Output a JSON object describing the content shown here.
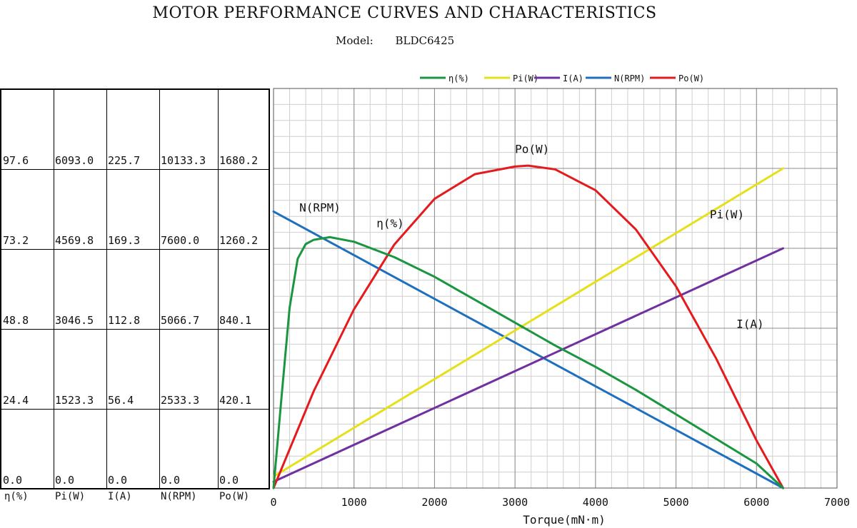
{
  "title": "MOTOR PERFORMANCE CURVES AND CHARACTERISTICS",
  "model_label": "Model:",
  "model_value": "BLDC6425",
  "legend": [
    {
      "name": "η(%)",
      "color": "#1a9641"
    },
    {
      "name": "Pi(W)",
      "color": "#e5e01a"
    },
    {
      "name": "I(A)",
      "color": "#7030a0"
    },
    {
      "name": "N(RPM)",
      "color": "#1f6fbf"
    },
    {
      "name": "Po(W)",
      "color": "#e41a1c"
    }
  ],
  "scale_table": {
    "columns": [
      "η(%)",
      "Pi(W)",
      "I(A)",
      "N(RPM)",
      "Po(W)"
    ],
    "rows": [
      [
        "97.6",
        "6093.0",
        "225.7",
        "10133.3",
        "1680.2"
      ],
      [
        "73.2",
        "4569.8",
        "169.3",
        "7600.0",
        "1260.2"
      ],
      [
        "48.8",
        "3046.5",
        "112.8",
        "5066.7",
        "840.1"
      ],
      [
        "24.4",
        "1523.3",
        "56.4",
        "2533.3",
        "420.1"
      ],
      [
        "0.0",
        "0.0",
        "0.0",
        "0.0",
        "0.0"
      ]
    ]
  },
  "chart_data": {
    "type": "line",
    "xlabel": "Torque(mN·m)",
    "xlim": [
      0,
      7000
    ],
    "x_ticks": [
      "0",
      "1000",
      "2000",
      "3000",
      "4000",
      "5000",
      "6000",
      "7000"
    ],
    "grid": true,
    "series": [
      {
        "name": "N(RPM)",
        "color": "#1f6fbf",
        "scale_max": 10133.3,
        "x": [
          0,
          6330
        ],
        "values": [
          8766,
          0
        ]
      },
      {
        "name": "Pi(W)",
        "color": "#e5e01a",
        "scale_max": 6093.0,
        "x": [
          0,
          6330
        ],
        "values": [
          220,
          6093
        ]
      },
      {
        "name": "I(A)",
        "color": "#7030a0",
        "scale_max": 225.7,
        "x": [
          0,
          6330
        ],
        "values": [
          4.5,
          169.3
        ]
      },
      {
        "name": "Po(W)",
        "color": "#e41a1c",
        "scale_max": 1680.2,
        "x": [
          0,
          500,
          1000,
          1500,
          2000,
          2500,
          3000,
          3165,
          3500,
          4000,
          4500,
          5000,
          5500,
          6000,
          6330
        ],
        "values": [
          0,
          510,
          940,
          1280,
          1520,
          1650,
          1690,
          1695,
          1675,
          1565,
          1360,
          1060,
          680,
          250,
          0
        ]
      },
      {
        "name": "η(%)",
        "color": "#1a9641",
        "scale_max": 97.6,
        "x": [
          0,
          100,
          200,
          300,
          400,
          500,
          700,
          1000,
          1500,
          2000,
          2500,
          3000,
          3500,
          4000,
          4500,
          5000,
          5500,
          6000,
          6330
        ],
        "values": [
          0,
          28,
          55,
          70,
          74.5,
          75.8,
          76.6,
          75.2,
          70.5,
          64.5,
          57.5,
          50.5,
          43.5,
          37,
          30,
          22.5,
          15,
          7.5,
          0
        ]
      }
    ],
    "annotations": [
      {
        "text": "N(RPM)",
        "x": 320,
        "value": 8766,
        "series": "N(RPM)"
      },
      {
        "text": "η(%)",
        "x": 1280,
        "value": 79.6,
        "series": "η(%)"
      },
      {
        "text": "Po(W)",
        "x": 3000,
        "value": 1760,
        "series": "Po(W)"
      },
      {
        "text": "Pi(W)",
        "x": 5420,
        "value": 5140,
        "series": "Pi(W)"
      },
      {
        "text": "I(A)",
        "x": 5750,
        "value": 113,
        "series": "I(A)"
      }
    ]
  }
}
